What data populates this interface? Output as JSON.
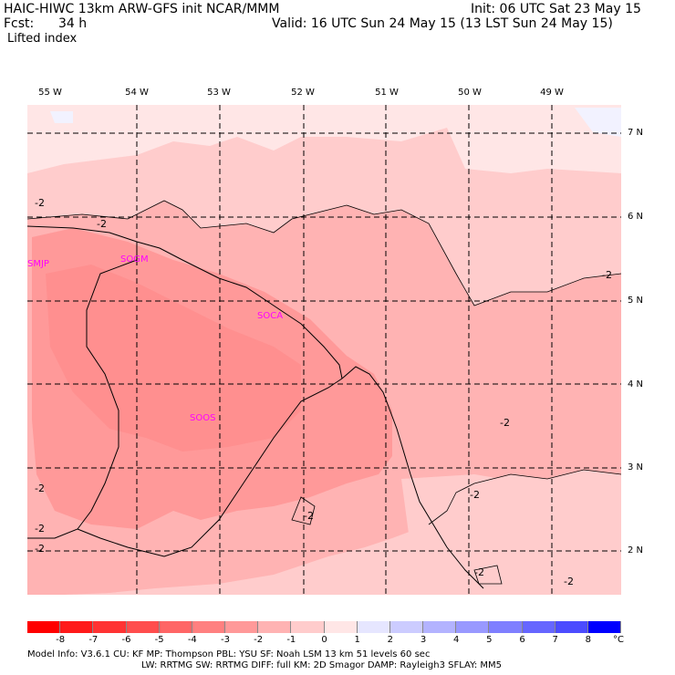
{
  "header": {
    "line1_left": "HAIC-HIWC 13km ARW-GFS init    NCAR/MMM",
    "line1_right": "Init: 06 UTC Sat 23 May 15",
    "fcst_label": "Fcst:",
    "fcst_value": "34 h",
    "valid": "Valid: 16 UTC Sun 24 May 15 (13 LST Sun 24 May 15)",
    "field": "Lifted index"
  },
  "longitudes": [
    "55 W",
    "54 W",
    "53 W",
    "52 W",
    "51 W",
    "50 W",
    "49 W"
  ],
  "latitudes": [
    "7 N",
    "6 N",
    "5 N",
    "4 N",
    "3 N",
    "2 N"
  ],
  "stations": [
    "SMJP",
    "SOGM",
    "SOCA",
    "SOOS"
  ],
  "contour_labels": [
    "-2",
    "-2",
    "-2",
    "-2",
    "-2",
    "-2",
    "-2",
    "-2",
    "-2",
    "-2",
    "-2"
  ],
  "colorbar": {
    "labels": [
      "-8",
      "-7",
      "-6",
      "-5",
      "-4",
      "-3",
      "-2",
      "-1",
      "0",
      "1",
      "2",
      "3",
      "4",
      "5",
      "6",
      "7",
      "8"
    ],
    "unit": "°C",
    "colors": [
      "#ff0000",
      "#ff1a1a",
      "#ff3333",
      "#ff4d4d",
      "#ff6666",
      "#ff8080",
      "#ff9999",
      "#ffb3b3",
      "#ffcccc",
      "#ffe6e6",
      "#e6e6ff",
      "#ccccff",
      "#b3b3ff",
      "#9999ff",
      "#7f7fff",
      "#6666ff",
      "#4c4cff",
      "#0000ff"
    ]
  },
  "footer": {
    "line1": "Model Info: V3.6.1    CU: KF      MP: Thompson     PBL: YSU      SF: Noah LSM    13 km   51 levels   60 sec",
    "line2": "LW: RRTMG    SW: RRTMG   DIFF: full    KM: 2D Smagor DAMP: Rayleigh3  SFLAY: MM5"
  }
}
